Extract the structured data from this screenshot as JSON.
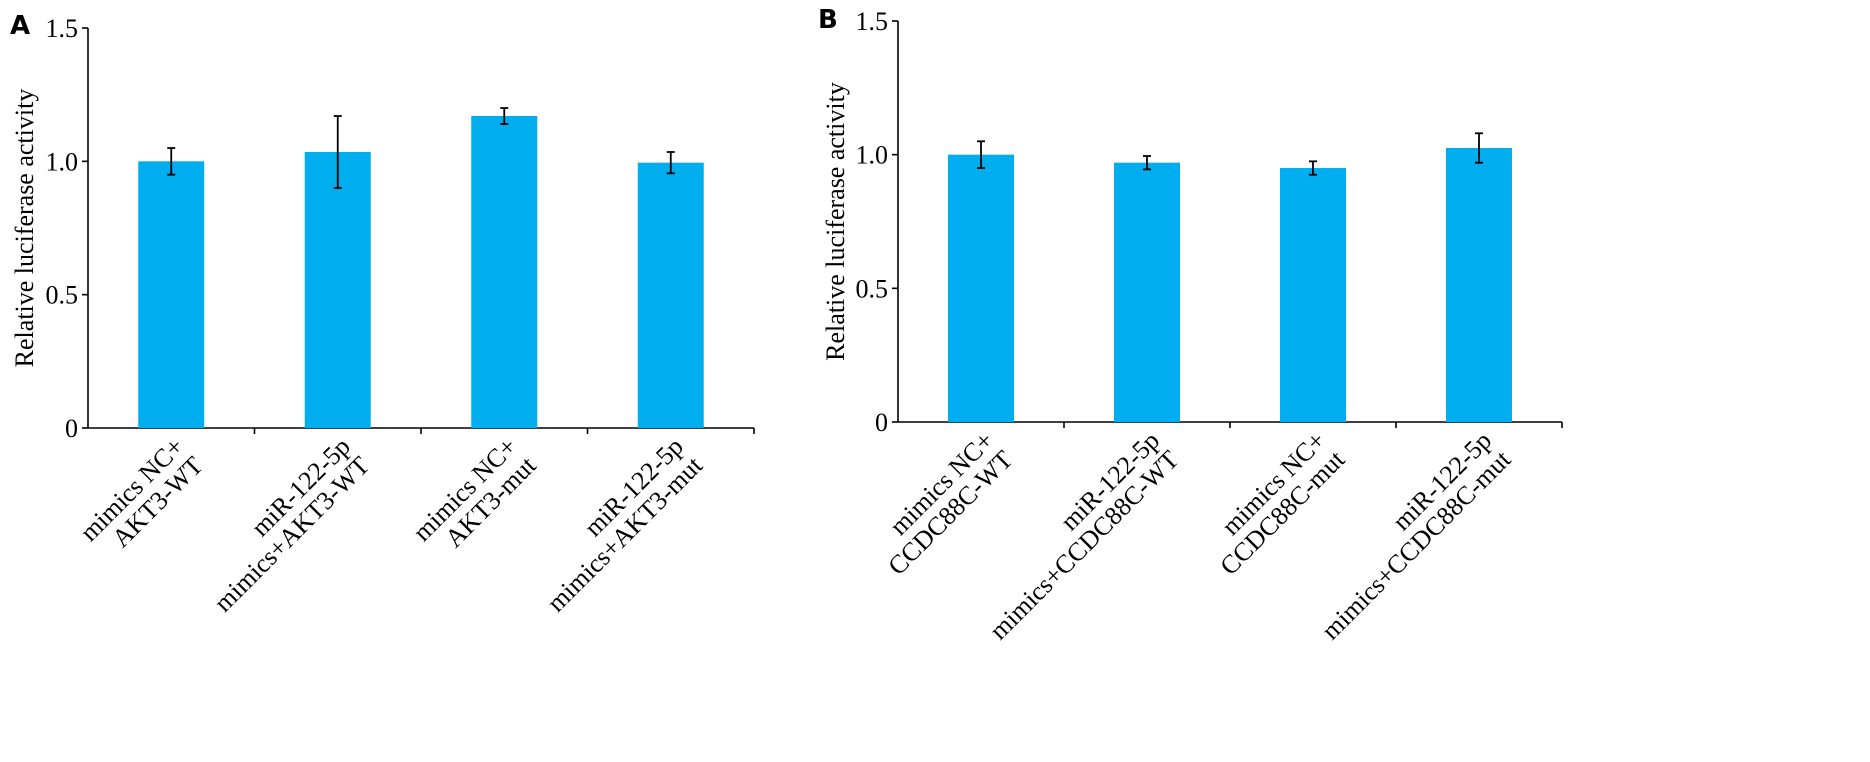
{
  "chart_data": [
    {
      "type": "bar",
      "panel": "A",
      "ylabel": "Relative luciferase activity",
      "ylim": [
        0,
        1.5
      ],
      "yticks": [
        "0",
        "0.5",
        "1.0",
        "1.5"
      ],
      "categories": [
        [
          "mimics NC+",
          "AKT3-WT"
        ],
        [
          "miR-122-5p",
          "mimics+AKT3-WT"
        ],
        [
          "mimics NC+",
          "AKT3-mut"
        ],
        [
          "miR-122-5p",
          "mimics+AKT3-mut"
        ]
      ],
      "values": [
        1.0,
        1.035,
        1.17,
        0.995
      ],
      "errors": [
        0.05,
        0.135,
        0.03,
        0.04
      ],
      "bar_color": "#00adef"
    },
    {
      "type": "bar",
      "panel": "B",
      "ylabel": "Relative luciferase activity",
      "ylim": [
        0,
        1.5
      ],
      "yticks": [
        "0",
        "0.5",
        "1.0",
        "1.5"
      ],
      "categories": [
        [
          "mimics NC+",
          "CCDC88C-WT"
        ],
        [
          "miR-122-5p",
          "mimics+CCDC88C-WT"
        ],
        [
          "mimics NC+",
          "CCDC88C-mut"
        ],
        [
          "miR-122-5p",
          "mimics+CCDC88C-mut"
        ]
      ],
      "values": [
        1.0,
        0.97,
        0.95,
        1.025
      ],
      "errors": [
        0.05,
        0.025,
        0.025,
        0.055
      ],
      "bar_color": "#00adef"
    }
  ]
}
